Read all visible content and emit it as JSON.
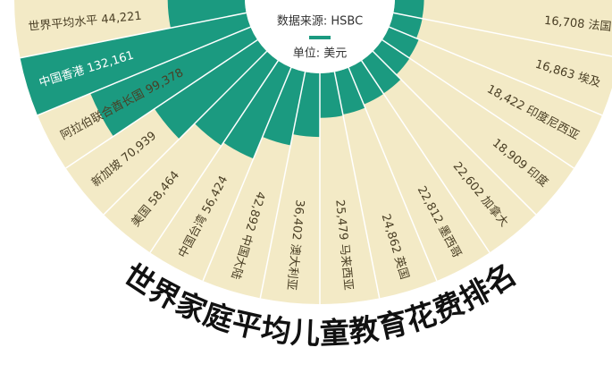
{
  "chart_data": {
    "type": "radial-bar",
    "title": "世界家庭平均儿童教育花费排名",
    "source": "数据来源: HSBC",
    "unit": "单位: 美元",
    "categories": [
      "世界平均水平",
      "中国香港",
      "阿拉伯联合酋长国",
      "新加坡",
      "美国",
      "中国台湾",
      "中国大陆",
      "澳大利亚",
      "马来西亚",
      "英国",
      "墨西哥",
      "加拿大",
      "印度",
      "印度尼西亚",
      "埃及",
      "法国"
    ],
    "values": [
      44221,
      132161,
      99378,
      70939,
      58464,
      56424,
      42892,
      36402,
      25479,
      24862,
      22812,
      22602,
      18909,
      18422,
      16863,
      16708
    ],
    "value_labels": [
      "44,221",
      "132,161",
      "99,378",
      "70,939",
      "58,464",
      "56,424",
      "42,892",
      "36,402",
      "25,479",
      "24,862",
      "22,812",
      "22,602",
      "18,909",
      "18,422",
      "16,863",
      "16,708"
    ],
    "color": "#1b9a80",
    "background": "#f3eac6"
  }
}
